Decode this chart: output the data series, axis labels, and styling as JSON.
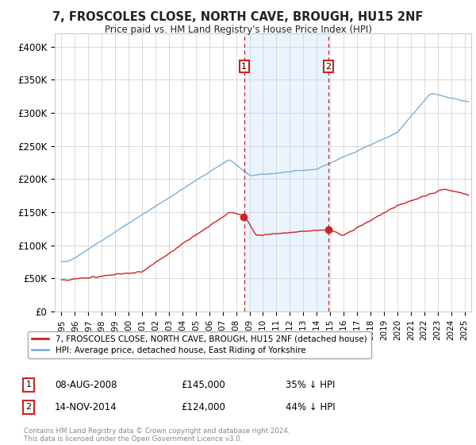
{
  "title": "7, FROSCOLES CLOSE, NORTH CAVE, BROUGH, HU15 2NF",
  "subtitle": "Price paid vs. HM Land Registry's House Price Index (HPI)",
  "ylabel_ticks": [
    "£0",
    "£50K",
    "£100K",
    "£150K",
    "£200K",
    "£250K",
    "£300K",
    "£350K",
    "£400K"
  ],
  "ylim": [
    0,
    420000
  ],
  "xlim_start": 1994.5,
  "xlim_end": 2025.5,
  "hpi_color": "#7ab0d4",
  "price_color": "#cc2222",
  "transaction1_date": 2008.6,
  "transaction1_price": 145000,
  "transaction2_date": 2014.87,
  "transaction2_price": 124000,
  "legend_label1": "7, FROSCOLES CLOSE, NORTH CAVE, BROUGH, HU15 2NF (detached house)",
  "legend_label2": "HPI: Average price, detached house, East Riding of Yorkshire",
  "annotation1_date": "08-AUG-2008",
  "annotation1_price": "£145,000",
  "annotation1_pct": "35% ↓ HPI",
  "annotation2_date": "14-NOV-2014",
  "annotation2_price": "£124,000",
  "annotation2_pct": "44% ↓ HPI",
  "footer": "Contains HM Land Registry data © Crown copyright and database right 2024.\nThis data is licensed under the Open Government Licence v3.0.",
  "background_color": "#ffffff",
  "grid_color": "#cccccc",
  "shade_color": "#ddeeff"
}
